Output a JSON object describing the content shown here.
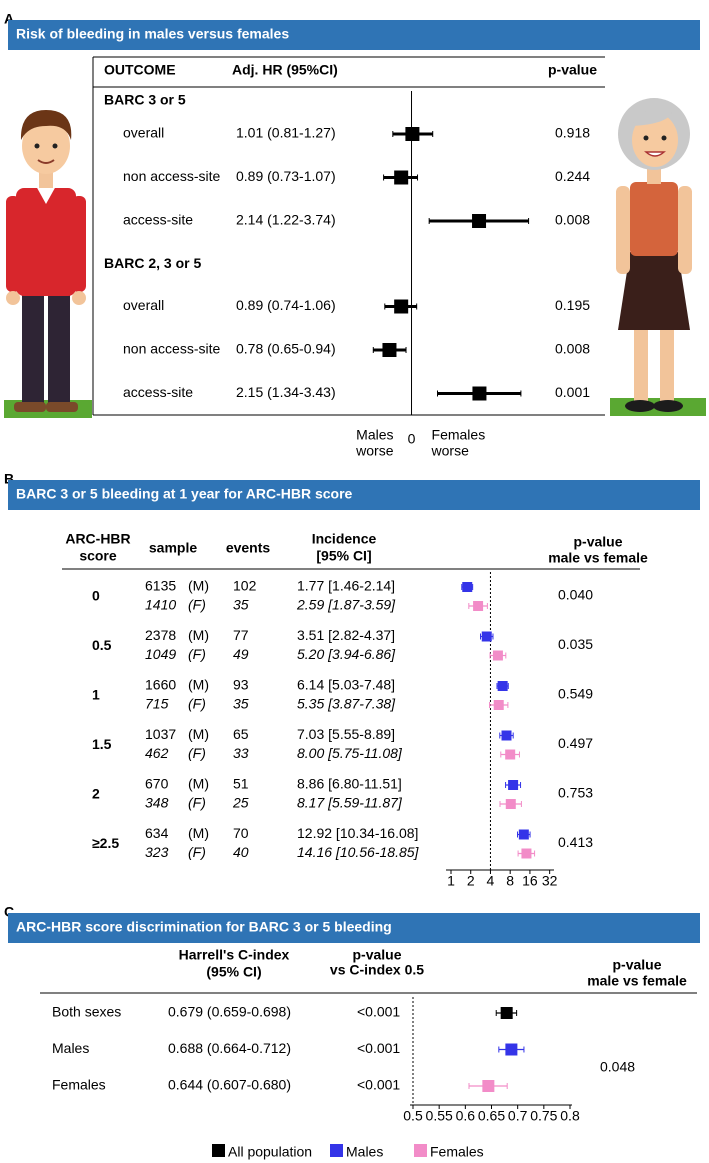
{
  "chart_data": [
    {
      "type": "forest",
      "panel_label": "A",
      "title": "Risk of bleeding in males versus females",
      "columns": [
        "OUTCOME",
        "Adj. HR (95%CI)",
        "p-value"
      ],
      "groups": [
        {
          "name": "BARC 3 or 5",
          "rows": [
            {
              "label": "overall",
              "estimate_label": "1.01 (0.81-1.27)",
              "value": 1.01,
              "low": 0.81,
              "high": 1.27,
              "p_value": "0.918"
            },
            {
              "label": "non access-site",
              "estimate_label": "0.89 (0.73-1.07)",
              "value": 0.89,
              "low": 0.73,
              "high": 1.07,
              "p_value": "0.244"
            },
            {
              "label": "access-site",
              "estimate_label": "2.14 (1.22-3.74)",
              "value": 2.14,
              "low": 1.22,
              "high": 3.74,
              "p_value": "0.008"
            }
          ]
        },
        {
          "name": "BARC 2, 3 or 5",
          "rows": [
            {
              "label": "overall",
              "estimate_label": "0.89 (0.74-1.06)",
              "value": 0.89,
              "low": 0.74,
              "high": 1.06,
              "p_value": "0.195"
            },
            {
              "label": "non access-site",
              "estimate_label": "0.78 (0.65-0.94)",
              "value": 0.78,
              "low": 0.65,
              "high": 0.94,
              "p_value": "0.008"
            },
            {
              "label": "access-site",
              "estimate_label": "2.15 (1.34-3.43)",
              "value": 2.15,
              "low": 1.34,
              "high": 3.43,
              "p_value": "0.001"
            }
          ]
        }
      ],
      "log_scale": true,
      "xlim": [
        0.5,
        4.5
      ],
      "reference_line": 1,
      "axis_center_label": "0",
      "x_left_label": [
        "Males",
        "worse"
      ],
      "x_right_label": [
        "Females",
        "worse"
      ],
      "color": "#000000"
    },
    {
      "type": "forest",
      "panel_label": "B",
      "title": "BARC 3 or 5 bleeding at 1 year for ARC-HBR score",
      "columns": {
        "score": [
          "ARC-HBR",
          "score"
        ],
        "sample": "sample",
        "events": "events",
        "incidence": [
          "Incidence",
          "[95% CI]"
        ],
        "p_value": [
          "p-value",
          "male vs female"
        ]
      },
      "male_tag": "(M)",
      "female_tag": "(F)",
      "male_color": "#3434e8",
      "female_color": "#f28cc8",
      "rows": [
        {
          "score": "0",
          "male": {
            "sample": 6135,
            "events": 102,
            "estimate_label": "1.77 [1.46-2.14]",
            "value": 1.77,
            "low": 1.46,
            "high": 2.14
          },
          "female": {
            "sample": 1410,
            "events": 35,
            "estimate_label": "2.59 [1.87-3.59]",
            "value": 2.59,
            "low": 1.87,
            "high": 3.59
          },
          "p_value": "0.040"
        },
        {
          "score": "0.5",
          "male": {
            "sample": 2378,
            "events": 77,
            "estimate_label": "3.51 [2.82-4.37]",
            "value": 3.51,
            "low": 2.82,
            "high": 4.37
          },
          "female": {
            "sample": 1049,
            "events": 49,
            "estimate_label": "5.20 [3.94-6.86]",
            "value": 5.2,
            "low": 3.94,
            "high": 6.86
          },
          "p_value": "0.035"
        },
        {
          "score": "1",
          "male": {
            "sample": 1660,
            "events": 93,
            "estimate_label": "6.14 [5.03-7.48]",
            "value": 6.14,
            "low": 5.03,
            "high": 7.48
          },
          "female": {
            "sample": 715,
            "events": 35,
            "estimate_label": "5.35 [3.87-7.38]",
            "value": 5.35,
            "low": 3.87,
            "high": 7.38
          },
          "p_value": "0.549"
        },
        {
          "score": "1.5",
          "male": {
            "sample": 1037,
            "events": 65,
            "estimate_label": "7.03 [5.55-8.89]",
            "value": 7.03,
            "low": 5.55,
            "high": 8.89
          },
          "female": {
            "sample": 462,
            "events": 33,
            "estimate_label": "8.00 [5.75-11.08]",
            "value": 8.0,
            "low": 5.75,
            "high": 11.08
          },
          "p_value": "0.497"
        },
        {
          "score": "2",
          "male": {
            "sample": 670,
            "events": 51,
            "estimate_label": "8.86 [6.80-11.51]",
            "value": 8.86,
            "low": 6.8,
            "high": 11.51
          },
          "female": {
            "sample": 348,
            "events": 25,
            "estimate_label": "8.17 [5.59-11.87]",
            "value": 8.17,
            "low": 5.59,
            "high": 11.87
          },
          "p_value": "0.753"
        },
        {
          "score": "≥2.5",
          "male": {
            "sample": 634,
            "events": 70,
            "estimate_label": "12.92 [10.34-16.08]",
            "value": 12.92,
            "low": 10.34,
            "high": 16.08
          },
          "female": {
            "sample": 323,
            "events": 40,
            "estimate_label": "14.16 [10.56-18.85]",
            "value": 14.16,
            "low": 10.56,
            "high": 18.85
          },
          "p_value": "0.413"
        }
      ],
      "log_scale": true,
      "xlim": [
        0.9,
        36
      ],
      "xticks": [
        1,
        2,
        4,
        8,
        16,
        32
      ],
      "reference_line": 4
    },
    {
      "type": "forest",
      "panel_label": "C",
      "title": "ARC-HBR score discrimination for BARC 3 or 5 bleeding",
      "columns": {
        "estimate": [
          "Harrell's C-index",
          "(95% CI)"
        ],
        "p_vs_half": [
          "p-value",
          "vs C-index 0.5"
        ],
        "p_sex": [
          "p-value",
          "male vs female"
        ]
      },
      "rows": [
        {
          "label": "Both sexes",
          "estimate_label": "0.679 (0.659-0.698)",
          "value": 0.679,
          "low": 0.659,
          "high": 0.698,
          "p_value": "<0.001",
          "color": "#000000"
        },
        {
          "label": "Males",
          "estimate_label": "0.688 (0.664-0.712)",
          "value": 0.688,
          "low": 0.664,
          "high": 0.712,
          "p_value": "<0.001",
          "color": "#3434e8"
        },
        {
          "label": "Females",
          "estimate_label": "0.644 (0.607-0.680)",
          "value": 0.644,
          "low": 0.607,
          "high": 0.68,
          "p_value": "<0.001",
          "color": "#f28cc8"
        }
      ],
      "p_value_sex": "0.048",
      "xlim": [
        0.5,
        0.8
      ],
      "xticks": [
        0.5,
        0.55,
        0.6,
        0.65,
        0.7,
        0.75,
        0.8
      ],
      "reference_line": 0.5,
      "legend": [
        {
          "name": "All population",
          "color": "#000000"
        },
        {
          "name": "Males",
          "color": "#3434e8"
        },
        {
          "name": "Females",
          "color": "#f28cc8"
        }
      ]
    }
  ]
}
